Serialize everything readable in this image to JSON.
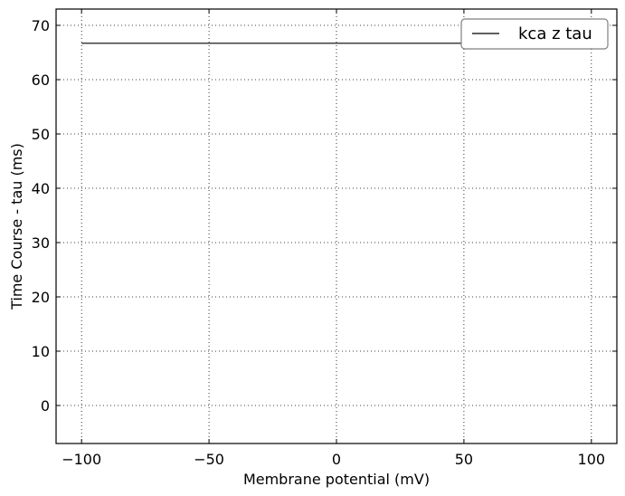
{
  "chart_data": {
    "type": "line",
    "title": "",
    "xlabel": "Membrane potential (mV)",
    "ylabel": "Time Course - tau (ms)",
    "xlim": [
      -110,
      110
    ],
    "ylim": [
      -7,
      73
    ],
    "x_ticks": [
      -100,
      -50,
      0,
      50,
      100
    ],
    "x_tick_labels": [
      "−100",
      "−50",
      "0",
      "50",
      "100"
    ],
    "y_ticks": [
      0,
      10,
      20,
      30,
      40,
      50,
      60,
      70
    ],
    "y_tick_labels": [
      "0",
      "10",
      "20",
      "30",
      "40",
      "50",
      "60",
      "70"
    ],
    "grid": true,
    "legend_position": "top-right",
    "series": [
      {
        "name": "kca z tau",
        "color": "#000000",
        "x": [
          -100,
          100
        ],
        "y": [
          66.7,
          66.7
        ]
      }
    ]
  }
}
